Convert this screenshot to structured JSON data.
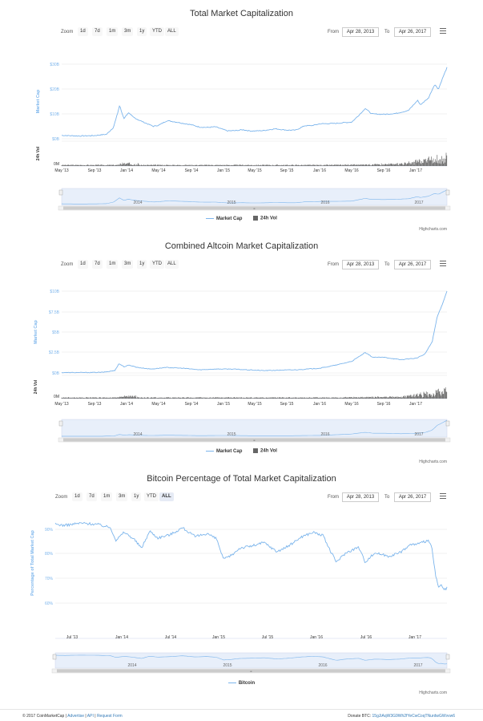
{
  "charts": [
    {
      "id": "total",
      "title": "Total Market Capitalization",
      "zoom_label": "Zoom",
      "zoom_buttons": [
        "1d",
        "7d",
        "1m",
        "3m",
        "1y",
        "YTD",
        "ALL"
      ],
      "from_label": "From",
      "from_value": "Apr 28, 2013",
      "to_label": "To",
      "to_value": "Apr 26, 2017",
      "ylabel": "Market Cap",
      "ylabel2": "24h Vol",
      "y_ticks": [
        "$30B",
        "$20B",
        "$10B",
        "$0B"
      ],
      "y2_ticks": [
        "0M"
      ],
      "x_ticks": [
        "May '13",
        "Sep '13",
        "Jan '14",
        "May '14",
        "Sep '14",
        "Jan '15",
        "May '15",
        "Sep '15",
        "Jan '16",
        "May '16",
        "Sep '16",
        "Jan '17"
      ],
      "nav_labels": [
        "2014",
        "2015",
        "2016",
        "2017"
      ],
      "legend": [
        "Market Cap",
        "24h Vol"
      ],
      "credits": "Highcharts.com"
    },
    {
      "id": "altcoin",
      "title": "Combined Altcoin Market Capitalization",
      "zoom_label": "Zoom",
      "zoom_buttons": [
        "1d",
        "7d",
        "1m",
        "3m",
        "1y",
        "YTD",
        "ALL"
      ],
      "from_label": "From",
      "from_value": "Apr 28, 2013",
      "to_label": "To",
      "to_value": "Apr 26, 2017",
      "ylabel": "Market Cap",
      "ylabel2": "24h Vol",
      "y_ticks": [
        "$10B",
        "$7.5B",
        "$5B",
        "$2.5B",
        "$0B"
      ],
      "y2_ticks": [
        "0M"
      ],
      "x_ticks": [
        "May '13",
        "Sep '13",
        "Jan '14",
        "May '14",
        "Sep '14",
        "Jan '15",
        "May '15",
        "Sep '15",
        "Jan '16",
        "May '16",
        "Sep '16",
        "Jan '17"
      ],
      "nav_labels": [
        "2014",
        "2015",
        "2016",
        "2017"
      ],
      "legend": [
        "Market Cap",
        "24h Vol"
      ],
      "credits": "Highcharts.com"
    },
    {
      "id": "bitcoin",
      "title": "Bitcoin Percentage of Total Market Capitalization",
      "zoom_label": "Zoom",
      "zoom_buttons": [
        "1d",
        "7d",
        "1m",
        "3m",
        "1y",
        "YTD",
        "ALL"
      ],
      "from_label": "From",
      "from_value": "Apr 28, 2013",
      "to_label": "To",
      "to_value": "Apr 26, 2017",
      "ylabel": "Percentage of Total Market Cap",
      "y_ticks": [
        "90%",
        "80%",
        "70%",
        "60%"
      ],
      "x_ticks": [
        "Jul '13",
        "Jan '14",
        "Jul '14",
        "Jan '15",
        "Jul '15",
        "Jan '16",
        "Jul '16",
        "Jan '17"
      ],
      "nav_labels": [
        "2014",
        "2015",
        "2016",
        "2017"
      ],
      "legend": [
        "Bitcoin"
      ],
      "credits": "Highcharts.com"
    }
  ],
  "chart_data": [
    {
      "type": "line",
      "title": "Total Market Capitalization",
      "ylabel": "Market Cap",
      "ylim": [
        0,
        33
      ],
      "x_range": [
        "2013-04-28",
        "2017-04-26"
      ],
      "series": [
        {
          "name": "Market Cap",
          "points": [
            [
              "2013-04-28",
              1.5
            ],
            [
              "2013-07-01",
              1.2
            ],
            [
              "2013-09-01",
              1.4
            ],
            [
              "2013-10-15",
              2.0
            ],
            [
              "2013-11-10",
              5.0
            ],
            [
              "2013-11-25",
              11.0
            ],
            [
              "2013-12-04",
              15.0
            ],
            [
              "2013-12-10",
              12.0
            ],
            [
              "2013-12-20",
              9.0
            ],
            [
              "2014-01-05",
              11.5
            ],
            [
              "2014-01-25",
              9.5
            ],
            [
              "2014-02-10",
              8.5
            ],
            [
              "2014-03-01",
              7.5
            ],
            [
              "2014-04-10",
              5.5
            ],
            [
              "2014-05-01",
              6.0
            ],
            [
              "2014-06-01",
              8.0
            ],
            [
              "2014-07-01",
              7.5
            ],
            [
              "2014-08-01",
              6.8
            ],
            [
              "2014-09-01",
              6.2
            ],
            [
              "2014-10-01",
              5.2
            ],
            [
              "2014-11-01",
              5.0
            ],
            [
              "2014-12-01",
              5.3
            ],
            [
              "2015-01-15",
              3.5
            ],
            [
              "2015-02-15",
              3.6
            ],
            [
              "2015-03-15",
              4.0
            ],
            [
              "2015-04-15",
              3.4
            ],
            [
              "2015-06-01",
              3.6
            ],
            [
              "2015-07-15",
              4.4
            ],
            [
              "2015-09-01",
              3.8
            ],
            [
              "2015-10-01",
              3.8
            ],
            [
              "2015-11-05",
              5.8
            ],
            [
              "2015-12-01",
              5.8
            ],
            [
              "2016-01-01",
              6.6
            ],
            [
              "2016-03-01",
              6.8
            ],
            [
              "2016-05-01",
              7.4
            ],
            [
              "2016-06-10",
              12.0
            ],
            [
              "2016-06-20",
              13.5
            ],
            [
              "2016-07-15",
              11.0
            ],
            [
              "2016-09-01",
              10.8
            ],
            [
              "2016-10-15",
              11.2
            ],
            [
              "2016-12-01",
              12.5
            ],
            [
              "2017-01-05",
              17.0
            ],
            [
              "2017-01-15",
              15.0
            ],
            [
              "2017-02-15",
              18.0
            ],
            [
              "2017-03-10",
              24.0
            ],
            [
              "2017-03-25",
              22.0
            ],
            [
              "2017-04-10",
              27.0
            ],
            [
              "2017-04-26",
              31.5
            ]
          ]
        }
      ]
    },
    {
      "type": "line",
      "title": "Combined Altcoin Market Capitalization",
      "ylabel": "Market Cap",
      "ylim": [
        0,
        10.5
      ],
      "x_range": [
        "2013-04-28",
        "2017-04-26"
      ],
      "series": [
        {
          "name": "Market Cap",
          "points": [
            [
              "2013-04-28",
              0.05
            ],
            [
              "2013-08-01",
              0.05
            ],
            [
              "2013-10-01",
              0.08
            ],
            [
              "2013-11-15",
              0.3
            ],
            [
              "2013-12-01",
              1.2
            ],
            [
              "2013-12-20",
              0.8
            ],
            [
              "2014-01-10",
              1.0
            ],
            [
              "2014-02-10",
              0.7
            ],
            [
              "2014-04-01",
              0.5
            ],
            [
              "2014-06-01",
              0.7
            ],
            [
              "2014-08-01",
              0.6
            ],
            [
              "2014-10-01",
              0.4
            ],
            [
              "2014-12-01",
              0.5
            ],
            [
              "2015-02-01",
              0.5
            ],
            [
              "2015-04-01",
              0.4
            ],
            [
              "2015-06-01",
              0.3
            ],
            [
              "2015-08-01",
              0.35
            ],
            [
              "2015-10-01",
              0.4
            ],
            [
              "2016-01-01",
              0.6
            ],
            [
              "2016-03-01",
              1.0
            ],
            [
              "2016-05-01",
              1.5
            ],
            [
              "2016-06-20",
              2.6
            ],
            [
              "2016-07-20",
              2.0
            ],
            [
              "2016-09-01",
              2.0
            ],
            [
              "2016-11-01",
              1.7
            ],
            [
              "2017-01-01",
              1.9
            ],
            [
              "2017-02-01",
              2.4
            ],
            [
              "2017-03-01",
              4.0
            ],
            [
              "2017-03-20",
              7.2
            ],
            [
              "2017-04-05",
              8.5
            ],
            [
              "2017-04-26",
              10.5
            ]
          ]
        }
      ]
    },
    {
      "type": "line",
      "title": "Bitcoin Percentage of Total Market Capitalization",
      "ylabel": "Percentage of Total Market Cap",
      "ylim": [
        55,
        100
      ],
      "x_range": [
        "2013-04-28",
        "2017-04-26"
      ],
      "series": [
        {
          "name": "Bitcoin",
          "points": [
            [
              "2013-04-28",
              94.5
            ],
            [
              "2013-06-01",
              94.0
            ],
            [
              "2013-08-01",
              95.0
            ],
            [
              "2013-10-01",
              94.5
            ],
            [
              "2013-11-20",
              93.0
            ],
            [
              "2013-12-10",
              87.5
            ],
            [
              "2014-01-10",
              91.0
            ],
            [
              "2014-02-15",
              88.0
            ],
            [
              "2014-03-15",
              84.0
            ],
            [
              "2014-04-15",
              91.5
            ],
            [
              "2014-05-15",
              88.5
            ],
            [
              "2014-07-01",
              90.0
            ],
            [
              "2014-08-15",
              93.0
            ],
            [
              "2014-10-01",
              89.0
            ],
            [
              "2014-11-15",
              90.5
            ],
            [
              "2014-12-20",
              88.0
            ],
            [
              "2015-01-15",
              79.0
            ],
            [
              "2015-02-15",
              81.0
            ],
            [
              "2015-03-15",
              84.0
            ],
            [
              "2015-05-01",
              85.0
            ],
            [
              "2015-06-15",
              86.5
            ],
            [
              "2015-08-01",
              82.5
            ],
            [
              "2015-09-15",
              85.0
            ],
            [
              "2015-11-01",
              89.0
            ],
            [
              "2015-12-15",
              91.0
            ],
            [
              "2016-01-20",
              89.5
            ],
            [
              "2016-02-20",
              82.0
            ],
            [
              "2016-03-10",
              78.0
            ],
            [
              "2016-04-15",
              82.0
            ],
            [
              "2016-06-01",
              84.5
            ],
            [
              "2016-06-25",
              78.0
            ],
            [
              "2016-08-01",
              82.0
            ],
            [
              "2016-09-20",
              80.5
            ],
            [
              "2016-11-01",
              82.0
            ],
            [
              "2016-12-10",
              85.5
            ],
            [
              "2017-01-15",
              86.0
            ],
            [
              "2017-02-15",
              87.5
            ],
            [
              "2017-03-01",
              84.0
            ],
            [
              "2017-03-15",
              72.0
            ],
            [
              "2017-03-25",
              66.5
            ],
            [
              "2017-04-05",
              68.0
            ],
            [
              "2017-04-15",
              65.5
            ],
            [
              "2017-04-26",
              66.5
            ]
          ]
        }
      ]
    }
  ],
  "footer": {
    "copyright": "© 2017 CoinMarketCap |",
    "links": [
      "Advertise",
      "API",
      "Request Form"
    ],
    "donate_label": "Donate BTC:",
    "donate_address": "15gJiAqW3G9Wh2fYeCwCoqTNurdwGWvvw6"
  }
}
